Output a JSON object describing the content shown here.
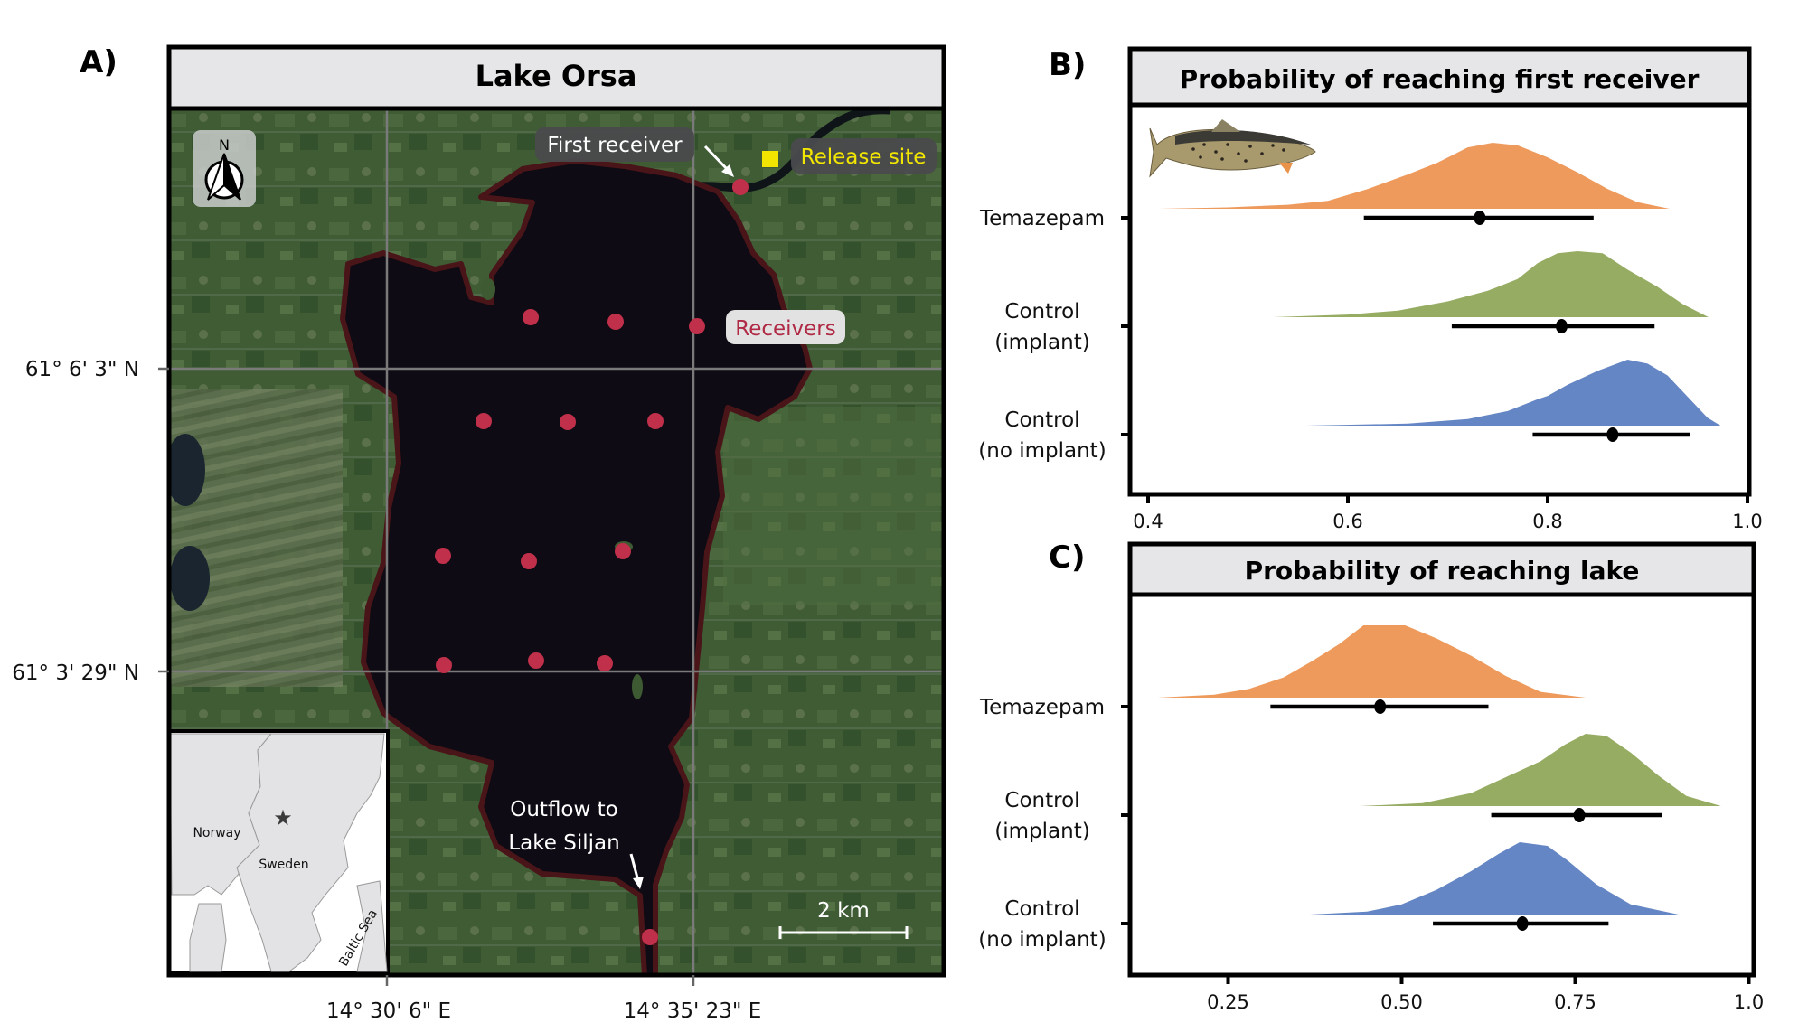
{
  "figure": {
    "panel_a": {
      "letter": "A)",
      "title": "Lake Orsa",
      "north_label": "N",
      "lat_labels": [
        "61° 6' 3\" N",
        "61° 3' 29\" N"
      ],
      "lon_labels": [
        "14° 30' 6\" E",
        "14° 35' 23\" E"
      ],
      "callouts": {
        "first_receiver": "First receiver",
        "release_site": "Release site",
        "receivers": "Receivers",
        "outflow_line1": "Outflow to",
        "outflow_line2": "Lake Siljan"
      },
      "scale_bar": "2 km",
      "receiver_count": 14,
      "inset": {
        "labels": [
          "Norway",
          "Sweden",
          "Baltic Sea"
        ],
        "marker": "star-icon"
      },
      "colors": {
        "receiver": "#c0304a",
        "release_site": "#f2e600",
        "release_text": "#f2e600",
        "receivers_text": "#b02a45",
        "lake": "#0d0b14",
        "land": "#3d5a32"
      }
    },
    "panel_b": {
      "letter": "B)",
      "title": "Probability of reaching first receiver"
    },
    "panel_c": {
      "letter": "C)",
      "title": "Probability of reaching lake"
    }
  },
  "chart_data": [
    {
      "type": "area",
      "subtype": "half-eye density with point and interval",
      "title": "Probability of reaching first receiver",
      "xlabel": "",
      "ylabel": "",
      "xlim": [
        0.38,
        1.0
      ],
      "xticks": [
        0.4,
        0.6,
        0.8,
        1.0
      ],
      "xtick_labels": [
        "0.4",
        "0.6",
        "0.8",
        "1.0"
      ],
      "categories": [
        {
          "label_lines": [
            "Temazepam"
          ]
        },
        {
          "label_lines": [
            "Control",
            "(implant)"
          ]
        },
        {
          "label_lines": [
            "Control",
            "(no implant)"
          ]
        }
      ],
      "series": [
        {
          "name": "Temazepam",
          "color": "#ee9a5c",
          "point": 0.732,
          "interval": [
            0.616,
            0.846
          ],
          "density": [
            [
              0.411,
              0.0
            ],
            [
              0.48,
              0.02
            ],
            [
              0.54,
              0.06
            ],
            [
              0.58,
              0.12
            ],
            [
              0.62,
              0.3
            ],
            [
              0.66,
              0.52
            ],
            [
              0.69,
              0.7
            ],
            [
              0.72,
              0.93
            ],
            [
              0.745,
              1.0
            ],
            [
              0.77,
              0.96
            ],
            [
              0.8,
              0.78
            ],
            [
              0.83,
              0.55
            ],
            [
              0.86,
              0.3
            ],
            [
              0.89,
              0.1
            ],
            [
              0.922,
              0.0
            ]
          ]
        },
        {
          "name": "Control (implant)",
          "color": "#97ac63",
          "point": 0.814,
          "interval": [
            0.704,
            0.907
          ],
          "density": [
            [
              0.525,
              0.0
            ],
            [
              0.6,
              0.04
            ],
            [
              0.65,
              0.1
            ],
            [
              0.7,
              0.24
            ],
            [
              0.74,
              0.4
            ],
            [
              0.77,
              0.58
            ],
            [
              0.79,
              0.82
            ],
            [
              0.81,
              0.97
            ],
            [
              0.83,
              1.0
            ],
            [
              0.855,
              0.97
            ],
            [
              0.88,
              0.72
            ],
            [
              0.91,
              0.46
            ],
            [
              0.935,
              0.2
            ],
            [
              0.961,
              0.0
            ]
          ]
        },
        {
          "name": "Control (no implant)",
          "color": "#6586c4",
          "point": 0.865,
          "interval": [
            0.785,
            0.943
          ],
          "density": [
            [
              0.558,
              0.0
            ],
            [
              0.66,
              0.03
            ],
            [
              0.72,
              0.1
            ],
            [
              0.76,
              0.22
            ],
            [
              0.79,
              0.4
            ],
            [
              0.8,
              0.45
            ],
            [
              0.82,
              0.62
            ],
            [
              0.85,
              0.83
            ],
            [
              0.88,
              1.0
            ],
            [
              0.9,
              0.94
            ],
            [
              0.92,
              0.76
            ],
            [
              0.94,
              0.44
            ],
            [
              0.96,
              0.12
            ],
            [
              0.973,
              0.0
            ]
          ]
        }
      ]
    },
    {
      "type": "area",
      "subtype": "half-eye density with point and interval",
      "title": "Probability of reaching lake",
      "xlabel": "",
      "ylabel": "",
      "xlim": [
        0.12,
        1.0
      ],
      "xticks": [
        0.25,
        0.5,
        0.75,
        1.0
      ],
      "xtick_labels": [
        "0.25",
        "0.50",
        "0.75",
        "1.0"
      ],
      "categories": [
        {
          "label_lines": [
            "Temazepam"
          ]
        },
        {
          "label_lines": [
            "Control",
            "(implant)"
          ]
        },
        {
          "label_lines": [
            "Control",
            "(no implant)"
          ]
        }
      ],
      "series": [
        {
          "name": "Temazepam",
          "color": "#ee9a5c",
          "point": 0.469,
          "interval": [
            0.311,
            0.625
          ],
          "density": [
            [
              0.149,
              0.0
            ],
            [
              0.23,
              0.04
            ],
            [
              0.28,
              0.12
            ],
            [
              0.33,
              0.28
            ],
            [
              0.37,
              0.5
            ],
            [
              0.41,
              0.74
            ],
            [
              0.445,
              1.0
            ],
            [
              0.505,
              1.0
            ],
            [
              0.55,
              0.82
            ],
            [
              0.6,
              0.58
            ],
            [
              0.65,
              0.3
            ],
            [
              0.7,
              0.08
            ],
            [
              0.765,
              0.0
            ]
          ]
        },
        {
          "name": "Control (implant)",
          "color": "#97ac63",
          "point": 0.756,
          "interval": [
            0.629,
            0.875
          ],
          "density": [
            [
              0.44,
              0.0
            ],
            [
              0.53,
              0.04
            ],
            [
              0.6,
              0.18
            ],
            [
              0.65,
              0.4
            ],
            [
              0.7,
              0.62
            ],
            [
              0.735,
              0.85
            ],
            [
              0.765,
              1.0
            ],
            [
              0.795,
              0.97
            ],
            [
              0.83,
              0.74
            ],
            [
              0.87,
              0.42
            ],
            [
              0.91,
              0.14
            ],
            [
              0.96,
              0.0
            ]
          ]
        },
        {
          "name": "Control (no implant)",
          "color": "#6586c4",
          "point": 0.674,
          "interval": [
            0.545,
            0.798
          ],
          "density": [
            [
              0.368,
              0.0
            ],
            [
              0.45,
              0.04
            ],
            [
              0.5,
              0.14
            ],
            [
              0.55,
              0.34
            ],
            [
              0.6,
              0.6
            ],
            [
              0.64,
              0.84
            ],
            [
              0.67,
              1.0
            ],
            [
              0.71,
              0.95
            ],
            [
              0.74,
              0.74
            ],
            [
              0.78,
              0.42
            ],
            [
              0.83,
              0.14
            ],
            [
              0.899,
              0.0
            ]
          ]
        }
      ]
    }
  ]
}
